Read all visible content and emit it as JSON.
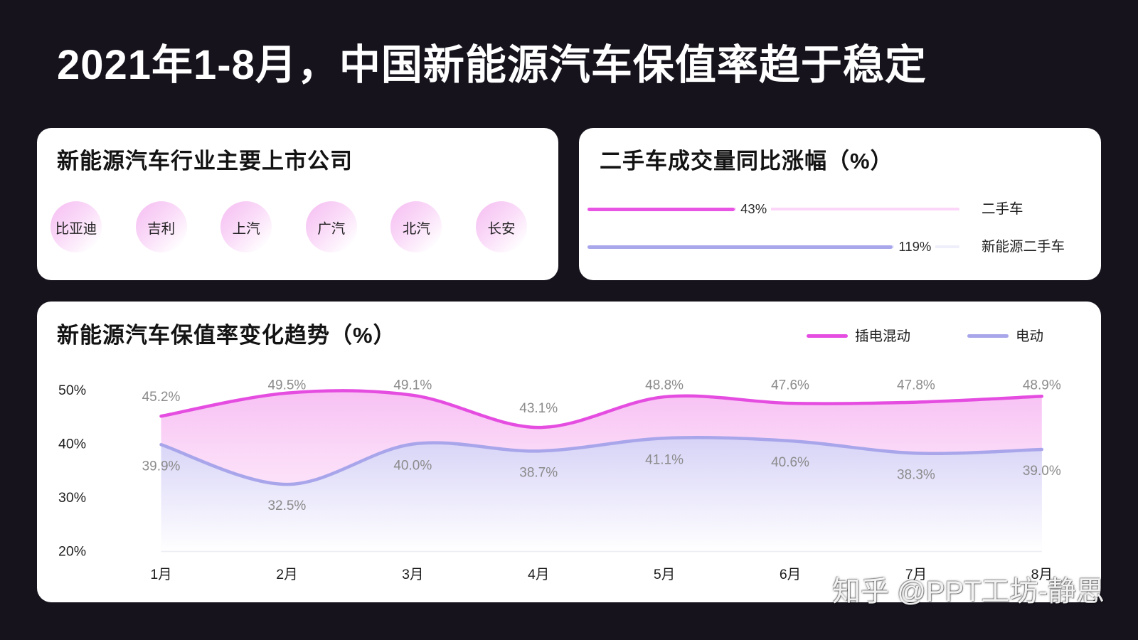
{
  "page": {
    "title": "2021年1-8月，中国新能源汽车保值率趋于稳定"
  },
  "colors": {
    "background": "#16131d",
    "card": "#ffffff",
    "text": "#161616",
    "data_label": "#8b8b8b"
  },
  "companies": {
    "title": "新能源汽车行业主要上市公司",
    "items": [
      "比亚迪",
      "吉利",
      "上汽",
      "广汽",
      "北汽",
      "长安"
    ]
  },
  "chart_data": [
    {
      "type": "bar",
      "orientation": "horizontal",
      "title": "二手车成交量同比涨幅（%）",
      "categories": [
        "二手车",
        "新能源二手车"
      ],
      "values": [
        43,
        119
      ],
      "data_labels": [
        "43%",
        "119%"
      ],
      "colors": [
        "#e854e4",
        "#a9a7ec"
      ],
      "track_colors": [
        "#fcd6f9",
        "#efeefb"
      ]
    },
    {
      "type": "line",
      "smooth": true,
      "area_fill": true,
      "title": "新能源汽车保值率变化趋势（%）",
      "categories": [
        "1月",
        "2月",
        "3月",
        "4月",
        "5月",
        "6月",
        "7月",
        "8月"
      ],
      "series": [
        {
          "name": "插电混动",
          "values": [
            45.2,
            49.5,
            49.1,
            43.1,
            48.8,
            47.6,
            47.8,
            48.9
          ],
          "data_labels": [
            "45.2%",
            "49.5%",
            "49.1%",
            "43.1%",
            "48.8%",
            "47.6%",
            "47.8%",
            "48.9%"
          ],
          "color": "#e54de1"
        },
        {
          "name": "电动",
          "values": [
            39.9,
            32.5,
            40.0,
            38.7,
            41.1,
            40.6,
            38.3,
            39.0
          ],
          "data_labels": [
            "39.9%",
            "32.5%",
            "40.0%",
            "38.7%",
            "41.1%",
            "40.6%",
            "38.3%",
            "39.0%"
          ],
          "color": "#a8a5eb"
        }
      ],
      "yticks": [
        {
          "value": 50,
          "label": "50%"
        },
        {
          "value": 40,
          "label": "40%"
        },
        {
          "value": 30,
          "label": "30%"
        },
        {
          "value": 20,
          "label": "20%"
        }
      ],
      "ylim": [
        20,
        50
      ],
      "grid": false,
      "legend": "top-right"
    }
  ],
  "watermark": "知乎 @PPT工坊-静思"
}
